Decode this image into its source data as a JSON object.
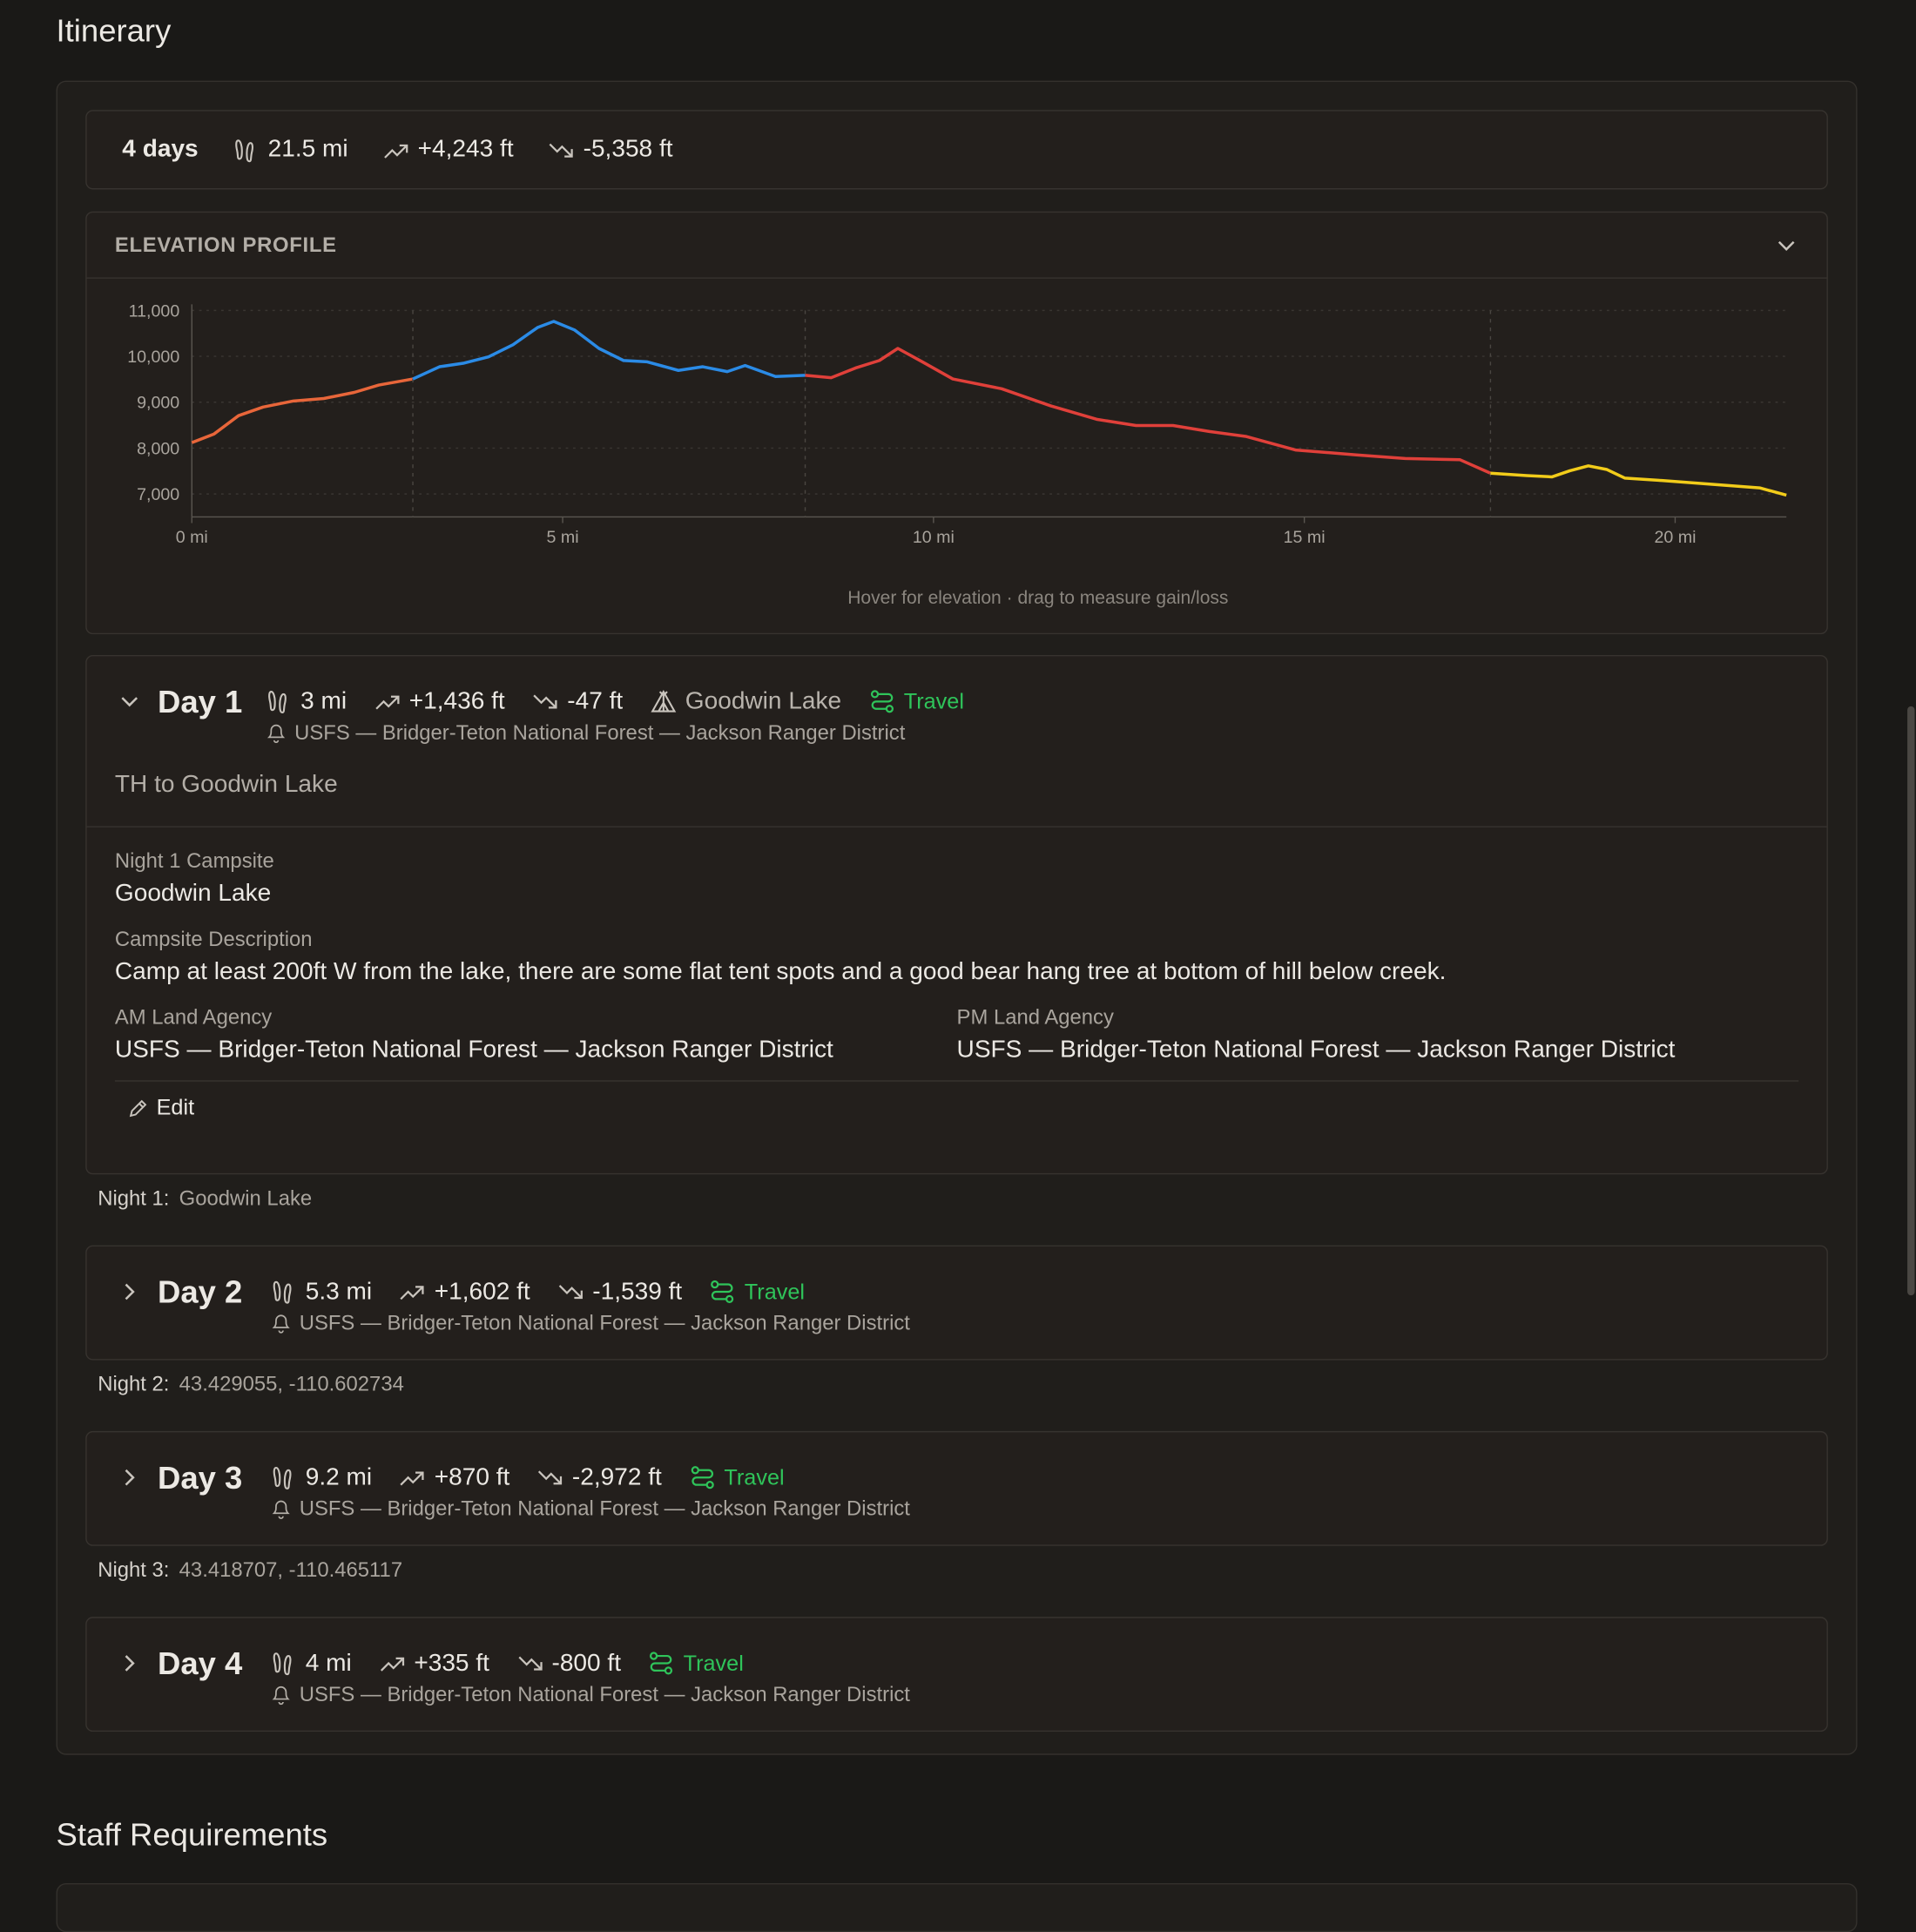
{
  "page": {
    "title": "Itinerary"
  },
  "summary": {
    "days": "4 days",
    "distance": "21.5 mi",
    "gain": "+4,243 ft",
    "loss": "-5,358 ft"
  },
  "elevation": {
    "title": "ELEVATION PROFILE"
  },
  "chart_data": {
    "type": "line",
    "xlim": [
      0,
      21.5
    ],
    "ylim": [
      6500,
      11000
    ],
    "xticks": [
      {
        "value": 0,
        "label": "0 mi"
      },
      {
        "value": 5,
        "label": "5 mi"
      },
      {
        "value": 10,
        "label": "10 mi"
      },
      {
        "value": 15,
        "label": "15 mi"
      },
      {
        "value": 20,
        "label": "20 mi"
      }
    ],
    "yticks": [
      {
        "value": 7000,
        "label": "7,000"
      },
      {
        "value": 8000,
        "label": "8,000"
      },
      {
        "value": 9000,
        "label": "9,000"
      },
      {
        "value": 10000,
        "label": "10,000"
      },
      {
        "value": 11000,
        "label": "11,000"
      }
    ],
    "grid": true,
    "annotation": "Hover for elevation · drag to measure gain/loss",
    "series": [
      {
        "color": "#e8663a",
        "x": [
          0,
          0.3,
          0.63,
          0.96,
          1.37,
          1.78,
          2.19,
          2.52,
          2.98
        ],
        "values": [
          8120,
          8307,
          8707,
          8893,
          9027,
          9080,
          9213,
          9373,
          9507
        ]
      },
      {
        "color": "#2b8be6",
        "x": [
          2.98,
          3.34,
          3.67,
          4.0,
          4.33,
          4.66,
          4.88,
          5.16,
          5.49,
          5.82,
          6.14,
          6.56,
          6.89,
          7.22,
          7.46,
          7.87,
          8.27
        ],
        "values": [
          9507,
          9773,
          9853,
          9987,
          10253,
          10627,
          10760,
          10573,
          10173,
          9907,
          9880,
          9693,
          9773,
          9667,
          9800,
          9560,
          9587
        ]
      },
      {
        "color": "#e0403a",
        "x": [
          8.27,
          8.62,
          8.95,
          9.27,
          9.52,
          9.85,
          10.26,
          10.92,
          11.58,
          12.2,
          12.73,
          13.23,
          13.72,
          14.22,
          14.88,
          15.7,
          16.36,
          17.1,
          17.51
        ],
        "values": [
          9587,
          9533,
          9747,
          9907,
          10173,
          9880,
          9507,
          9293,
          8920,
          8627,
          8493,
          8493,
          8360,
          8253,
          7960,
          7853,
          7773,
          7747,
          7453
        ]
      },
      {
        "color": "#f2cc1a",
        "x": [
          17.51,
          18.0,
          18.34,
          18.58,
          18.83,
          19.08,
          19.32,
          19.82,
          20.48,
          21.14,
          21.5
        ],
        "values": [
          7453,
          7400,
          7373,
          7507,
          7613,
          7533,
          7347,
          7293,
          7213,
          7133,
          6973
        ]
      }
    ]
  },
  "days": [
    {
      "title": "Day 1",
      "distance": "3 mi",
      "gain": "+1,436 ft",
      "loss": "-47 ft",
      "camp": "Goodwin Lake",
      "tag": "Travel",
      "agency": "USFS — Bridger-Teton National Forest — Jackson Ranger District",
      "subtitle": "TH to Goodwin Lake",
      "details": {
        "campsite_label": "Night 1 Campsite",
        "campsite": "Goodwin Lake",
        "description_label": "Campsite Description",
        "description": "Camp at least 200ft W from the lake, there are some flat tent spots and a good bear hang tree at bottom of hill below creek.",
        "am_label": "AM Land Agency",
        "am": "USFS — Bridger-Teton National Forest — Jackson Ranger District",
        "pm_label": "PM Land Agency",
        "pm": "USFS — Bridger-Teton National Forest — Jackson Ranger District",
        "edit": "Edit"
      },
      "night": {
        "label": "Night 1:",
        "value": "Goodwin Lake"
      }
    },
    {
      "title": "Day 2",
      "distance": "5.3 mi",
      "gain": "+1,602 ft",
      "loss": "-1,539 ft",
      "tag": "Travel",
      "agency": "USFS — Bridger-Teton National Forest — Jackson Ranger District",
      "night": {
        "label": "Night 2:",
        "value": "43.429055, -110.602734"
      }
    },
    {
      "title": "Day 3",
      "distance": "9.2 mi",
      "gain": "+870 ft",
      "loss": "-2,972 ft",
      "tag": "Travel",
      "agency": "USFS — Bridger-Teton National Forest — Jackson Ranger District",
      "night": {
        "label": "Night 3:",
        "value": "43.418707, -110.465117"
      }
    },
    {
      "title": "Day 4",
      "distance": "4 mi",
      "gain": "+335 ft",
      "loss": "-800 ft",
      "tag": "Travel",
      "agency": "USFS — Bridger-Teton National Forest — Jackson Ranger District"
    }
  ],
  "staff": {
    "title": "Staff Requirements"
  }
}
